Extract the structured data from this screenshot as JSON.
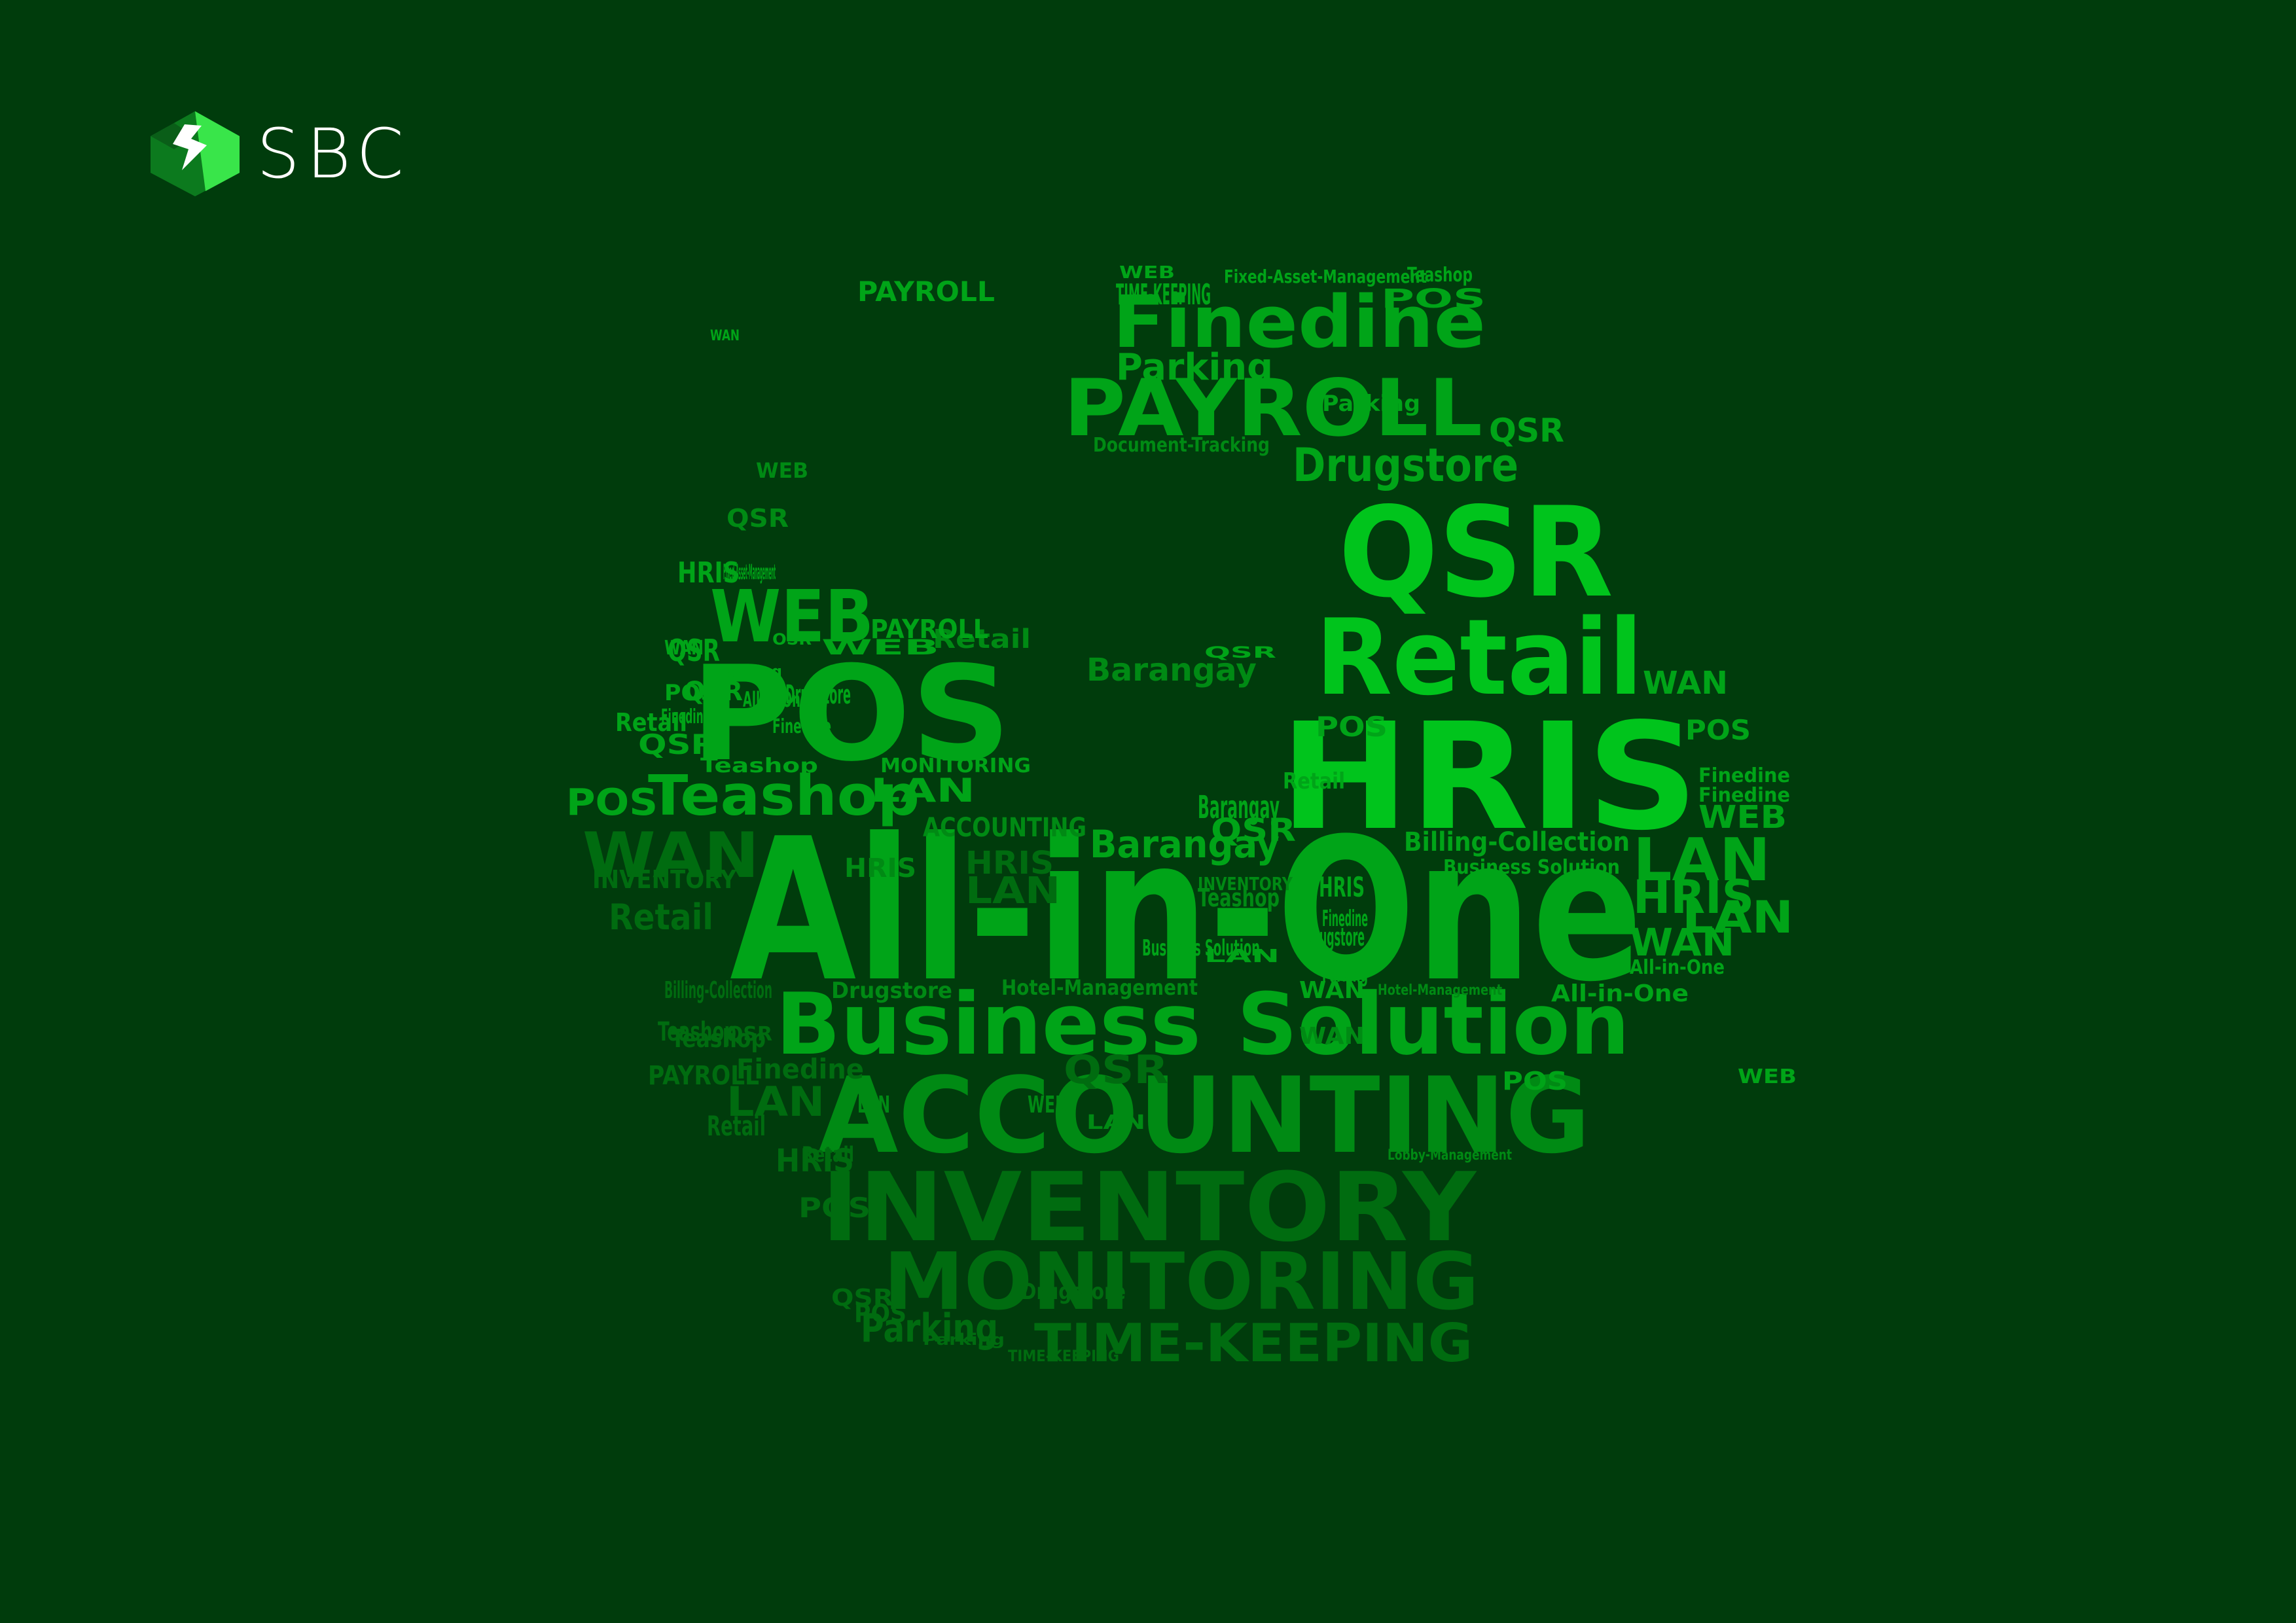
{
  "brand": {
    "name": "SBC",
    "logo_icon": "sbc-cube-logo-icon",
    "colors": {
      "logo_light": "#39e54a",
      "logo_dark": "#0c7a1e",
      "text": "#ffffff"
    }
  },
  "background_color": "#003c0c",
  "word_cloud": {
    "palette": [
      "#00c41c",
      "#00a418",
      "#008a14",
      "#006c10",
      "#005a0e"
    ],
    "words": [
      "All-in-One",
      "Business",
      "Solution",
      "ACCOUNTING",
      "INVENTORY",
      "MONITORING",
      "TIME-KEEPING",
      "HRIS",
      "QSR",
      "Retail",
      "POS",
      "Teashop",
      "PAYROLL",
      "Finedine",
      "Drugstore",
      "WAN",
      "WEB",
      "LAN",
      "Parking",
      "Barangay",
      "Billing-Collection",
      "Business Solution",
      "Fixed-Asset-Management",
      "Document-Tracking",
      "Hotel-Management",
      "Lobby-Management",
      "LAN",
      "WAN",
      "QSR",
      "HRIS",
      "Retail",
      "POS",
      "WEB",
      "Parking",
      "WAN",
      "LAN",
      "HRIS",
      "WEB",
      "QSR",
      "Finedine",
      "Finedine",
      "All-in-One",
      "All-in-One",
      "PAYROLL",
      "HRIS",
      "WAN",
      "Barangay",
      "Teashop",
      "Drugstore",
      "Hotel-Management",
      "Billing-Collection",
      "Teashop",
      "PAYROLL",
      "Finedine",
      "LAN",
      "HRIS",
      "Retail",
      "INVENTORY",
      "WAN",
      "POS",
      "Teashop",
      "Retail",
      "Parking",
      "QSR",
      "LAN",
      "WEB",
      "ACCOUNTING",
      "TIME-KEEPING",
      "Parking",
      "QSR",
      "LAN",
      "WEB",
      "WAN",
      "Drugstore",
      "LAN",
      "Retail",
      "QSR",
      "Barangay",
      "MONITORING",
      "INVENTORY",
      "Teashop",
      "WEB",
      "POS",
      "QSR",
      "Retail",
      "Finedine",
      "Business Solution",
      "LAN",
      "QSR",
      "POS",
      "HRIS",
      "Drugstore",
      "Parking",
      "QSR",
      "HRIS",
      "OSR",
      "POS",
      "WAN",
      "QSR",
      "Finedine",
      "POS",
      "QSR",
      "Retail",
      "POS",
      "Parking",
      "TIME-KEEPING",
      "WEB",
      "POS",
      "Teashop",
      "Drugstore",
      "Fixed-Asset-Management",
      "PAYROLL",
      "All-in-One",
      "Finedine",
      "Retail",
      "WAN",
      "Barangay",
      "Parking",
      "Teashop"
    ]
  }
}
